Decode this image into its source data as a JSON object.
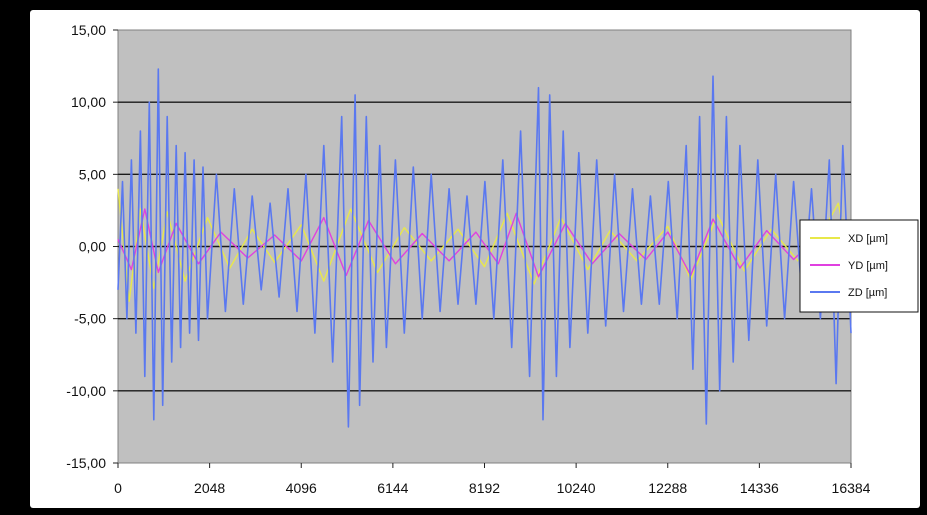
{
  "chart_data": {
    "type": "line",
    "title": "",
    "xlabel": "",
    "ylabel": "",
    "x_range": [
      0,
      16384
    ],
    "y_range": [
      -15,
      15
    ],
    "x_ticks": [
      "0",
      "2048",
      "4096",
      "6144",
      "8192",
      "10240",
      "12288",
      "14336",
      "16384"
    ],
    "y_ticks": [
      "15,00",
      "10,00",
      "5,00",
      "0,00",
      "-5,00",
      "-10,00",
      "-15,00"
    ],
    "grid": "horizontal",
    "legend_position": "right",
    "plot_background": "#c0c0c0",
    "series": [
      {
        "name": "XD [µm]",
        "color": "#e8e84a",
        "points": [
          [
            0,
            4.0
          ],
          [
            250,
            -3.8
          ],
          [
            500,
            2.6
          ],
          [
            800,
            -2.9
          ],
          [
            1100,
            2.4
          ],
          [
            1500,
            -2.4
          ],
          [
            2000,
            2.0
          ],
          [
            2500,
            -1.5
          ],
          [
            3000,
            1.2
          ],
          [
            3500,
            -1.1
          ],
          [
            4096,
            1.5
          ],
          [
            4600,
            -2.4
          ],
          [
            5200,
            2.6
          ],
          [
            5800,
            -1.8
          ],
          [
            6400,
            1.3
          ],
          [
            7000,
            -1.0
          ],
          [
            7600,
            1.2
          ],
          [
            8192,
            -1.4
          ],
          [
            8700,
            2.3
          ],
          [
            9300,
            -2.6
          ],
          [
            9900,
            2.0
          ],
          [
            10500,
            -1.6
          ],
          [
            11000,
            1.1
          ],
          [
            11600,
            -1.0
          ],
          [
            12288,
            1.4
          ],
          [
            12800,
            -2.3
          ],
          [
            13400,
            2.2
          ],
          [
            14000,
            -1.7
          ],
          [
            14600,
            1.2
          ],
          [
            15200,
            -1.0
          ],
          [
            15800,
            1.3
          ],
          [
            16100,
            3.0
          ],
          [
            16384,
            -1.5
          ]
        ]
      },
      {
        "name": "YD [µm]",
        "color": "#e040e0",
        "points": [
          [
            0,
            0.5
          ],
          [
            300,
            -1.6
          ],
          [
            600,
            2.6
          ],
          [
            900,
            -1.8
          ],
          [
            1300,
            1.6
          ],
          [
            1800,
            -1.2
          ],
          [
            2300,
            1.0
          ],
          [
            2900,
            -0.8
          ],
          [
            3500,
            0.8
          ],
          [
            4096,
            -1.0
          ],
          [
            4600,
            2.0
          ],
          [
            5100,
            -2.0
          ],
          [
            5600,
            1.8
          ],
          [
            6200,
            -1.2
          ],
          [
            6800,
            0.9
          ],
          [
            7400,
            -1.0
          ],
          [
            8000,
            1.0
          ],
          [
            8500,
            -1.2
          ],
          [
            8900,
            2.3
          ],
          [
            9400,
            -2.1
          ],
          [
            10000,
            1.6
          ],
          [
            10600,
            -1.2
          ],
          [
            11200,
            0.9
          ],
          [
            11800,
            -0.9
          ],
          [
            12288,
            1.0
          ],
          [
            12800,
            -2.0
          ],
          [
            13300,
            1.9
          ],
          [
            13900,
            -1.5
          ],
          [
            14500,
            1.1
          ],
          [
            15100,
            -0.9
          ],
          [
            15700,
            0.9
          ],
          [
            16384,
            -0.6
          ]
        ]
      },
      {
        "name": "ZD [µm]",
        "color": "#5a78f0",
        "points": [
          [
            0,
            -3
          ],
          [
            100,
            4.5
          ],
          [
            200,
            -5
          ],
          [
            300,
            6
          ],
          [
            400,
            -6
          ],
          [
            500,
            8
          ],
          [
            600,
            -9
          ],
          [
            700,
            10
          ],
          [
            800,
            -12
          ],
          [
            900,
            12.3
          ],
          [
            1000,
            -11
          ],
          [
            1100,
            9
          ],
          [
            1200,
            -8
          ],
          [
            1300,
            7
          ],
          [
            1400,
            -7
          ],
          [
            1500,
            6.5
          ],
          [
            1600,
            -6
          ],
          [
            1700,
            6
          ],
          [
            1800,
            -6.5
          ],
          [
            1900,
            5.5
          ],
          [
            2000,
            -5
          ],
          [
            2200,
            5
          ],
          [
            2400,
            -4.5
          ],
          [
            2600,
            4
          ],
          [
            2800,
            -4
          ],
          [
            3000,
            3.5
          ],
          [
            3200,
            -3
          ],
          [
            3400,
            3
          ],
          [
            3600,
            -3.5
          ],
          [
            3800,
            4
          ],
          [
            4000,
            -4.5
          ],
          [
            4200,
            5
          ],
          [
            4400,
            -6
          ],
          [
            4600,
            7
          ],
          [
            4800,
            -8
          ],
          [
            5000,
            9
          ],
          [
            5150,
            -12.5
          ],
          [
            5300,
            10.5
          ],
          [
            5400,
            -11
          ],
          [
            5550,
            9
          ],
          [
            5700,
            -8
          ],
          [
            5850,
            7
          ],
          [
            6000,
            -7
          ],
          [
            6200,
            6
          ],
          [
            6400,
            -6
          ],
          [
            6600,
            5.5
          ],
          [
            6800,
            -5
          ],
          [
            7000,
            5
          ],
          [
            7200,
            -4.5
          ],
          [
            7400,
            4
          ],
          [
            7600,
            -4
          ],
          [
            7800,
            3.5
          ],
          [
            8000,
            -4
          ],
          [
            8200,
            4.5
          ],
          [
            8400,
            -5
          ],
          [
            8600,
            6
          ],
          [
            8800,
            -7
          ],
          [
            9000,
            8
          ],
          [
            9200,
            -9
          ],
          [
            9400,
            11
          ],
          [
            9500,
            -12
          ],
          [
            9650,
            10.5
          ],
          [
            9800,
            -9
          ],
          [
            9950,
            8
          ],
          [
            10100,
            -7
          ],
          [
            10300,
            6.5
          ],
          [
            10500,
            -6
          ],
          [
            10700,
            6
          ],
          [
            10900,
            -5.5
          ],
          [
            11100,
            5
          ],
          [
            11300,
            -4.5
          ],
          [
            11500,
            4
          ],
          [
            11700,
            -4
          ],
          [
            11900,
            3.5
          ],
          [
            12100,
            -4
          ],
          [
            12300,
            4.5
          ],
          [
            12500,
            -5
          ],
          [
            12700,
            7
          ],
          [
            12850,
            -8.5
          ],
          [
            13000,
            9
          ],
          [
            13150,
            -12.3
          ],
          [
            13300,
            11.8
          ],
          [
            13450,
            -10
          ],
          [
            13600,
            9
          ],
          [
            13750,
            -8
          ],
          [
            13900,
            7
          ],
          [
            14100,
            -6.5
          ],
          [
            14300,
            6
          ],
          [
            14500,
            -5.5
          ],
          [
            14700,
            5
          ],
          [
            14900,
            -5
          ],
          [
            15100,
            4.5
          ],
          [
            15300,
            -4
          ],
          [
            15500,
            4
          ],
          [
            15700,
            -5
          ],
          [
            15900,
            6
          ],
          [
            16050,
            -9.5
          ],
          [
            16200,
            7
          ],
          [
            16384,
            -6
          ]
        ]
      }
    ]
  }
}
